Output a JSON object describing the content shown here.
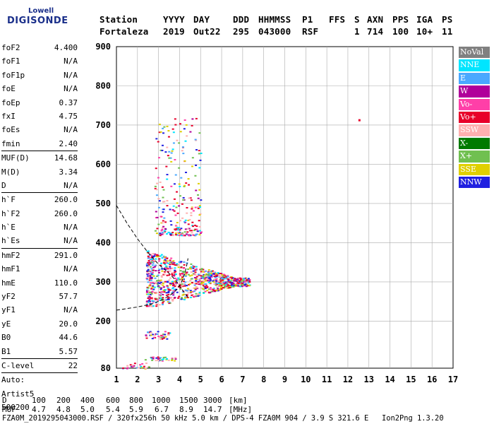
{
  "logo": {
    "line1": "Lowell",
    "line2": "DIGISONDE"
  },
  "header": {
    "row1": [
      "Station",
      "YYYY",
      "DAY",
      "DDD",
      "HHMMSS",
      "P1",
      "FFS",
      "S",
      "AXN",
      "PPS",
      "IGA",
      "PS"
    ],
    "row2": [
      "Fortaleza",
      "2019",
      "Out22",
      "295",
      "043000",
      "RSF",
      "1",
      "714",
      "100",
      "10+",
      "11"
    ]
  },
  "params": [
    {
      "name": "foF2",
      "value": "4.400"
    },
    {
      "name": "foF1",
      "value": "N/A"
    },
    {
      "name": "foF1p",
      "value": "N/A"
    },
    {
      "name": "foE",
      "value": "N/A"
    },
    {
      "name": "foEp",
      "value": "0.37"
    },
    {
      "name": "fxI",
      "value": "4.75"
    },
    {
      "name": "foEs",
      "value": "N/A"
    },
    {
      "name": "fmin",
      "value": "2.40"
    },
    {
      "sep": true
    },
    {
      "name": "MUF(D)",
      "value": "14.68"
    },
    {
      "name": "M(D)",
      "value": "3.34"
    },
    {
      "name": "D",
      "value": "N/A"
    },
    {
      "sep": true
    },
    {
      "name": "h`F",
      "value": "260.0"
    },
    {
      "name": "h`F2",
      "value": "260.0"
    },
    {
      "name": "h`E",
      "value": "N/A"
    },
    {
      "name": "h`Es",
      "value": "N/A"
    },
    {
      "sep": true
    },
    {
      "name": "hmF2",
      "value": "291.0"
    },
    {
      "name": "hmF1",
      "value": "N/A"
    },
    {
      "name": "hmE",
      "value": "110.0"
    },
    {
      "name": "yF2",
      "value": "57.7"
    },
    {
      "name": "yF1",
      "value": "N/A"
    },
    {
      "name": "yE",
      "value": "20.0"
    },
    {
      "name": "B0",
      "value": "44.6"
    },
    {
      "name": "B1",
      "value": "5.57"
    },
    {
      "sep": true
    },
    {
      "name": "C-level",
      "value": "22"
    },
    {
      "sep": true
    },
    {
      "name": "Auto:",
      "value": ""
    },
    {
      "name": "Artist5",
      "value": ""
    },
    {
      "name": "500200",
      "value": ""
    }
  ],
  "legend": [
    {
      "label": "NoVal",
      "color": "#808080"
    },
    {
      "label": "NNE",
      "color": "#00e5ff"
    },
    {
      "label": "E",
      "color": "#4aa8ff"
    },
    {
      "label": "W",
      "color": "#b0009a"
    },
    {
      "label": "Vo-",
      "color": "#ff3fa8"
    },
    {
      "label": "Vo+",
      "color": "#e8002a"
    },
    {
      "label": "SSW",
      "color": "#ffb0b0"
    },
    {
      "label": "X-",
      "color": "#007a00"
    },
    {
      "label": "X+",
      "color": "#70c050"
    },
    {
      "label": "SSE",
      "color": "#e0d000"
    },
    {
      "label": "NNW",
      "color": "#2020e0"
    }
  ],
  "footer": {
    "d_label": "D",
    "d_values": [
      "100",
      "200",
      "400",
      "600",
      "800",
      "1000",
      "1500",
      "3000",
      "[km]"
    ],
    "muf_label": "MUF",
    "muf_values": [
      "4.7",
      "4.8",
      "5.0",
      "5.4",
      "5.9",
      "6.7",
      "8.9",
      "14.7",
      "[MHz]"
    ],
    "file_line": "FZA0M_2019295043000.RSF / 320fx256h 50 kHz 5.0 km / DPS-4 FZA0M 904 / 3.9 S 321.6 E   Ion2Png 1.3.20"
  },
  "chart_data": {
    "type": "scatter",
    "title": "",
    "xlabel": "",
    "ylabel": "",
    "xlim": [
      1,
      17
    ],
    "ylim": [
      80,
      900
    ],
    "x_ticks": [
      1,
      2,
      3,
      4,
      5,
      6,
      7,
      8,
      9,
      10,
      11,
      12,
      13,
      14,
      15,
      16,
      17
    ],
    "y_ticks": [
      80,
      200,
      300,
      400,
      500,
      600,
      700,
      800,
      900
    ],
    "grid": true,
    "clusters": [
      {
        "name": "main F-layer trace",
        "x_range": [
          2.4,
          7.3
        ],
        "y_range": [
          240,
          420
        ]
      },
      {
        "name": "upper scatter",
        "x_range": [
          2.8,
          5.0
        ],
        "y_range": [
          420,
          720
        ]
      },
      {
        "name": "lower echoes 1",
        "x_range": [
          2.3,
          3.5
        ],
        "y_range": [
          155,
          175
        ]
      },
      {
        "name": "lower echoes 2",
        "x_range": [
          2.3,
          3.8
        ],
        "y_range": [
          100,
          110
        ]
      },
      {
        "name": "lower echoes 3",
        "x_range": [
          1.2,
          2.6
        ],
        "y_range": [
          80,
          95
        ]
      }
    ],
    "isolated_points": [
      {
        "x": 12.5,
        "y": 715
      }
    ],
    "profile_curve": [
      [
        1.0,
        495
      ],
      [
        1.5,
        450
      ],
      [
        2.0,
        410
      ],
      [
        2.5,
        375
      ],
      [
        3.0,
        345
      ],
      [
        3.5,
        322
      ],
      [
        3.8,
        305
      ],
      [
        4.0,
        290
      ],
      [
        4.2,
        275
      ],
      [
        4.4,
        260
      ]
    ],
    "trace_curve": [
      [
        1.0,
        228
      ],
      [
        2.0,
        236
      ],
      [
        2.7,
        244
      ],
      [
        3.2,
        255
      ],
      [
        3.6,
        268
      ],
      [
        3.9,
        282
      ],
      [
        4.1,
        300
      ],
      [
        4.25,
        322
      ],
      [
        4.35,
        345
      ],
      [
        4.4,
        360
      ]
    ]
  }
}
